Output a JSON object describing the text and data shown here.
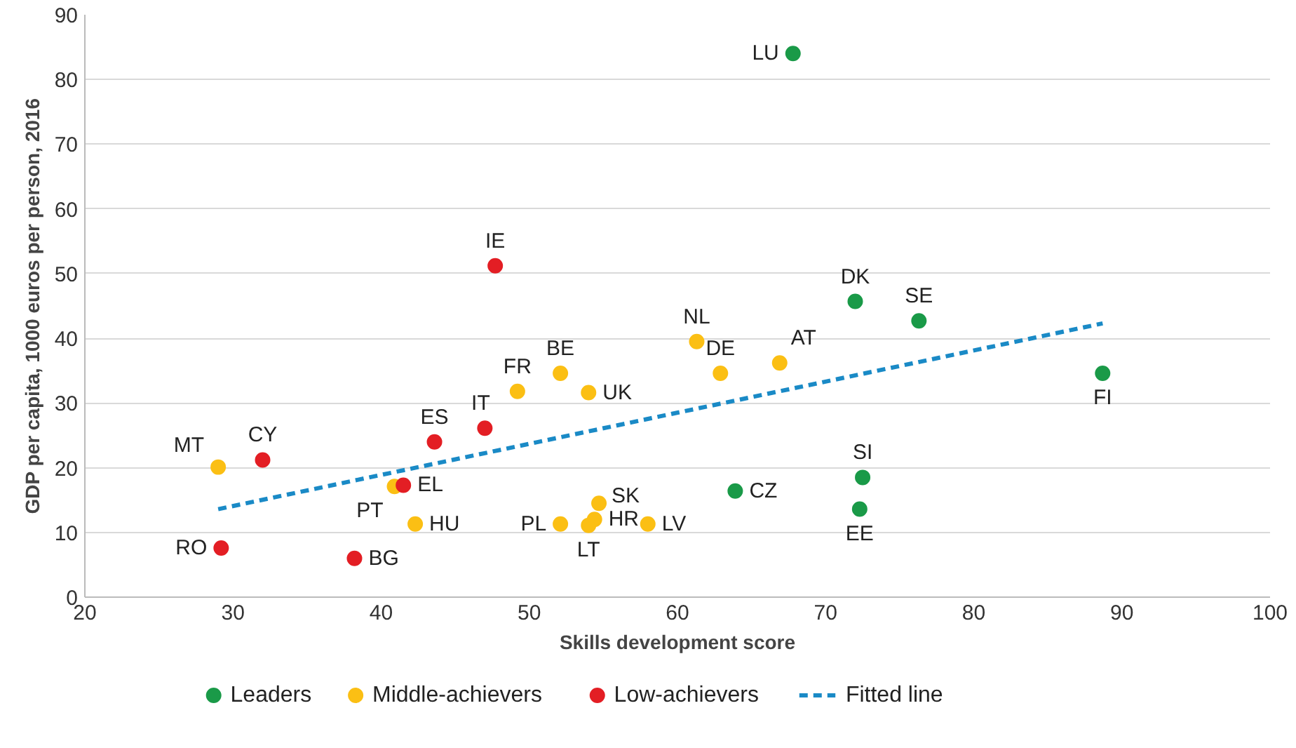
{
  "chart_data": {
    "type": "scatter",
    "xlabel": "Skills development score",
    "ylabel": "GDP per capita, 1000 euros per person, 2016",
    "series": [
      {
        "name": "Leaders",
        "color": "#1a9a48",
        "x": [
          67.8,
          72.0,
          76.3,
          88.7,
          63.9,
          72.5,
          72.3
        ],
        "values": [
          84.0,
          45.7,
          42.7,
          34.6,
          16.4,
          18.5,
          13.6
        ]
      },
      {
        "name": "Middle-achievers",
        "color": "#fbbf14",
        "x": [
          61.3,
          62.9,
          66.9,
          52.1,
          49.2,
          54.0,
          29.0,
          40.9,
          42.3,
          54.7,
          54.4,
          54.0,
          52.1,
          58.0
        ],
        "values": [
          39.5,
          34.6,
          36.2,
          34.6,
          31.8,
          31.6,
          20.1,
          17.1,
          11.3,
          14.5,
          12.0,
          11.1,
          11.3,
          11.3
        ]
      },
      {
        "name": "Low-achievers",
        "color": "#e31e24",
        "x": [
          47.7,
          47.0,
          43.6,
          32.0,
          41.5,
          29.2,
          38.2
        ],
        "values": [
          51.2,
          26.1,
          24.0,
          21.2,
          17.3,
          7.6,
          6.0
        ]
      },
      {
        "name": "Fitted line",
        "type": "line",
        "marker": "none",
        "line_style": "dashed",
        "color": "#1a8ac6",
        "x": [
          29.0,
          88.7
        ],
        "values": [
          13.6,
          42.3
        ]
      }
    ],
    "annotations": [
      {
        "text": "LU",
        "x": 67.8,
        "y": 84.0
      },
      {
        "text": "DK",
        "x": 72.0,
        "y": 45.7
      },
      {
        "text": "SE",
        "x": 76.3,
        "y": 42.7
      },
      {
        "text": "FI",
        "x": 88.7,
        "y": 34.6
      },
      {
        "text": "CZ",
        "x": 63.9,
        "y": 16.4
      },
      {
        "text": "SI",
        "x": 72.5,
        "y": 18.5
      },
      {
        "text": "EE",
        "x": 72.3,
        "y": 13.6
      },
      {
        "text": "NL",
        "x": 61.3,
        "y": 39.5
      },
      {
        "text": "DE",
        "x": 62.9,
        "y": 34.6
      },
      {
        "text": "AT",
        "x": 66.9,
        "y": 36.2
      },
      {
        "text": "BE",
        "x": 52.1,
        "y": 34.6
      },
      {
        "text": "FR",
        "x": 49.2,
        "y": 31.8
      },
      {
        "text": "UK",
        "x": 54.0,
        "y": 31.6
      },
      {
        "text": "MT",
        "x": 29.0,
        "y": 20.1
      },
      {
        "text": "PT",
        "x": 40.9,
        "y": 17.1
      },
      {
        "text": "HU",
        "x": 42.3,
        "y": 11.3
      },
      {
        "text": "SK",
        "x": 54.7,
        "y": 14.5
      },
      {
        "text": "HR",
        "x": 54.4,
        "y": 12.0
      },
      {
        "text": "LT",
        "x": 54.0,
        "y": 11.1
      },
      {
        "text": "PL",
        "x": 52.1,
        "y": 11.3
      },
      {
        "text": "LV",
        "x": 58.0,
        "y": 11.3
      },
      {
        "text": "IE",
        "x": 47.7,
        "y": 51.2
      },
      {
        "text": "IT",
        "x": 47.0,
        "y": 26.1
      },
      {
        "text": "ES",
        "x": 43.6,
        "y": 24.0
      },
      {
        "text": "CY",
        "x": 32.0,
        "y": 21.2
      },
      {
        "text": "EL",
        "x": 41.5,
        "y": 17.3
      },
      {
        "text": "RO",
        "x": 29.2,
        "y": 7.6
      },
      {
        "text": "BG",
        "x": 38.2,
        "y": 6.0
      }
    ],
    "xlim": [
      20,
      100
    ],
    "xticks": [
      20,
      30,
      40,
      50,
      60,
      70,
      80,
      90,
      100
    ],
    "ylim": [
      0,
      90
    ],
    "yticks": [
      0,
      10,
      20,
      30,
      40,
      50,
      60,
      70,
      80,
      90
    ],
    "grid": "y",
    "legend": "bottom",
    "marker": "circle"
  }
}
